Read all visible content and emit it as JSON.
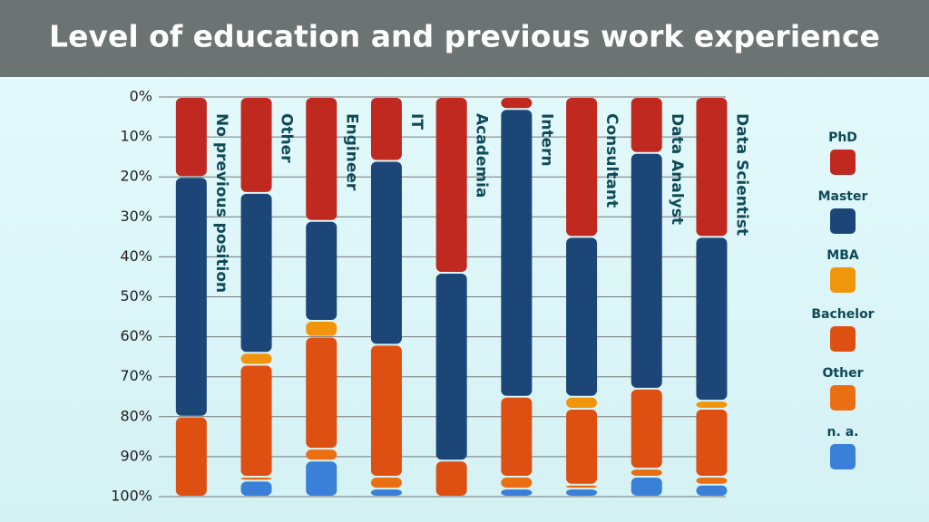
{
  "chart_data": {
    "type": "bar",
    "stacked": true,
    "y_reversed": true,
    "grid": true,
    "title": "Level of education and previous work experience",
    "categories": [
      "No previous position",
      "Other",
      "Engineer",
      "IT",
      "Academia",
      "Intern",
      "Consultant",
      "Data Analyst",
      "Data Scientist"
    ],
    "series": [
      {
        "name": "PhD",
        "color": "#c0291f",
        "values": [
          20,
          24,
          31,
          16,
          44,
          3,
          35,
          14,
          35
        ]
      },
      {
        "name": "Master",
        "color": "#1b4677",
        "values": [
          60,
          40,
          25,
          46,
          47,
          72,
          40,
          59,
          41
        ]
      },
      {
        "name": "MBA",
        "color": "#f0950c",
        "values": [
          0,
          3,
          4,
          0,
          0,
          0,
          3,
          0,
          2
        ]
      },
      {
        "name": "Bachelor",
        "color": "#de4f12",
        "values": [
          20,
          28,
          28,
          33,
          9,
          20,
          19,
          20,
          17
        ]
      },
      {
        "name": "Other",
        "color": "#ea6f12",
        "values": [
          0,
          1,
          3,
          3,
          0,
          3,
          1,
          2,
          2
        ]
      },
      {
        "name": "n. a.",
        "color": "#3a80d8",
        "values": [
          0,
          4,
          9,
          2,
          0,
          2,
          2,
          5,
          3
        ]
      }
    ],
    "ylim": [
      0,
      100
    ],
    "yticks": [
      {
        "value": 0,
        "label": "0%"
      },
      {
        "value": 10,
        "label": "10%"
      },
      {
        "value": 20,
        "label": "20%"
      },
      {
        "value": 30,
        "label": "30%"
      },
      {
        "value": 40,
        "label": "40%"
      },
      {
        "value": 50,
        "label": "50%"
      },
      {
        "value": 60,
        "label": "60%"
      },
      {
        "value": 70,
        "label": "70%"
      },
      {
        "value": 80,
        "label": "80%"
      },
      {
        "value": 90,
        "label": "90%"
      },
      {
        "value": 100,
        "label": "100%"
      }
    ]
  }
}
